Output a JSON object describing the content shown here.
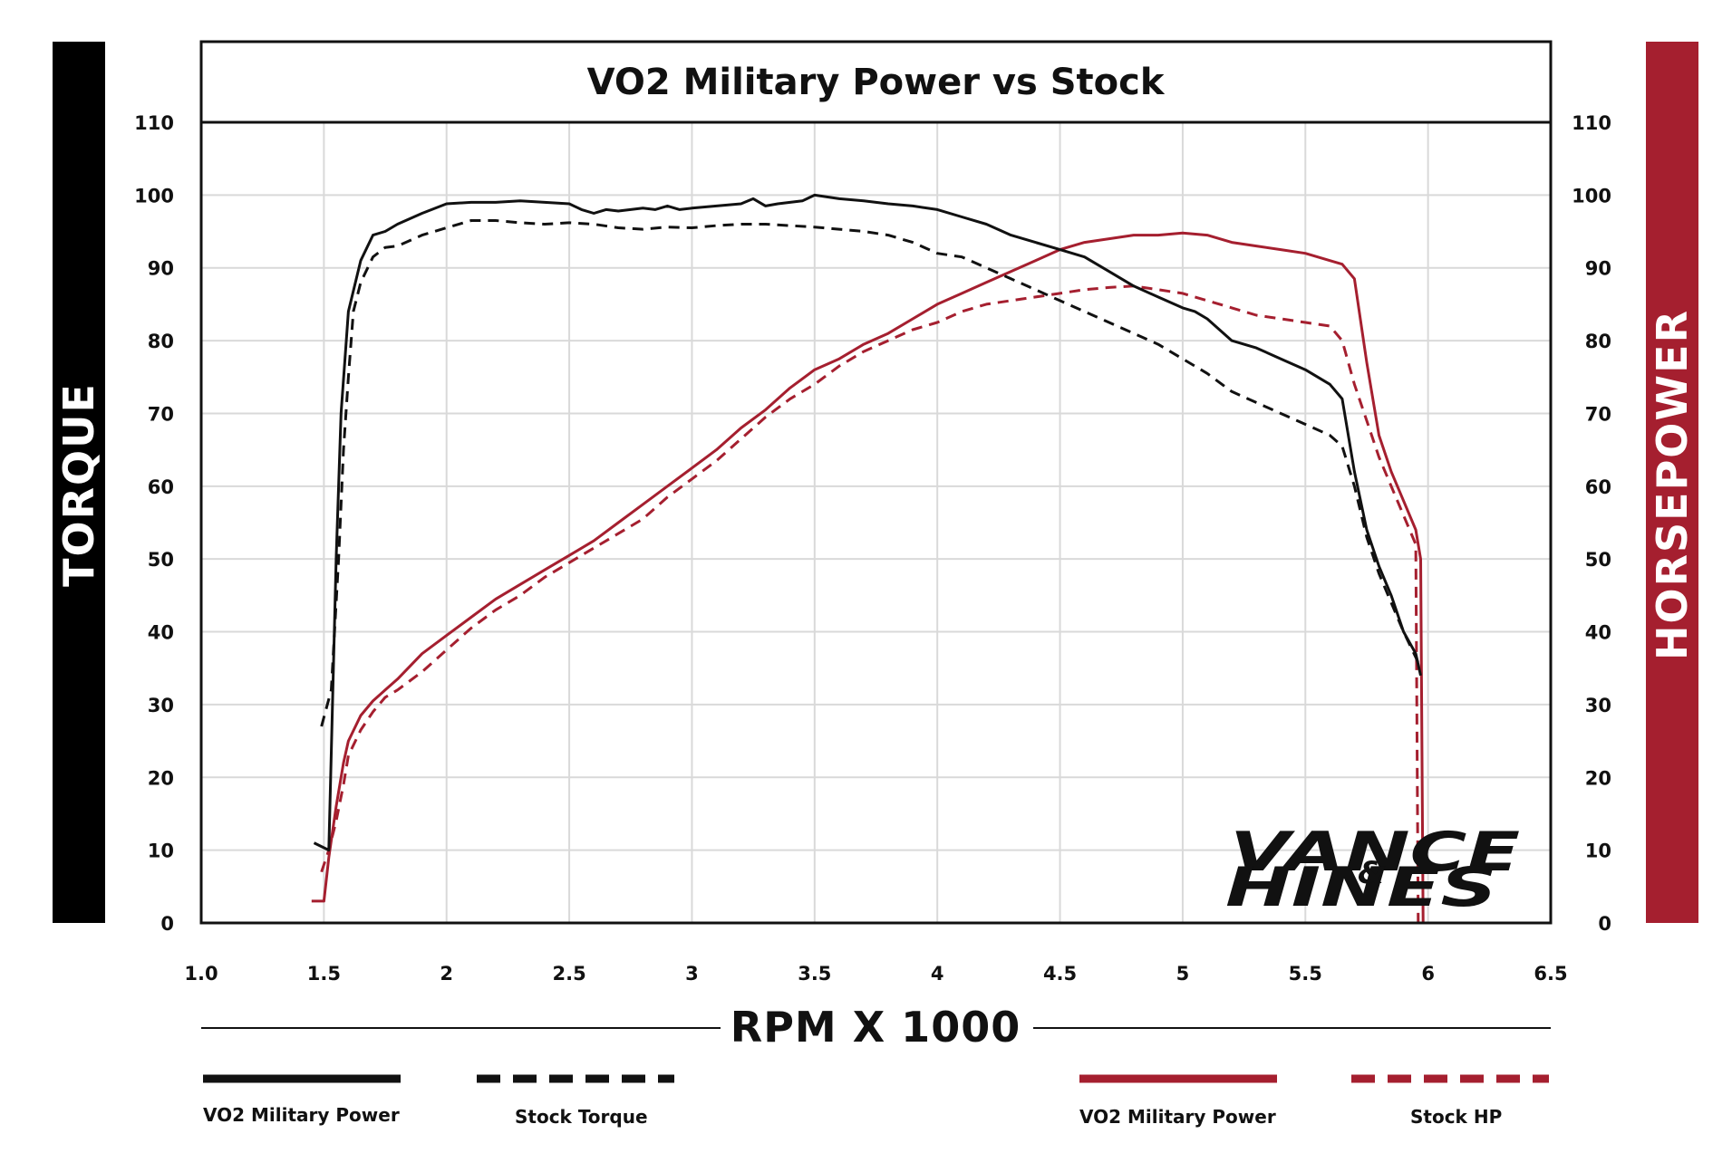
{
  "chart_data": {
    "type": "line",
    "title": "VO2 Military Power vs Stock",
    "xlabel": "RPM X 1000",
    "ylabel_left": "TORQUE",
    "ylabel_right": "HORSEPOWER",
    "xlim": [
      1.0,
      6.5
    ],
    "ylim": [
      0,
      110
    ],
    "x_ticks": [
      "1.0",
      "1.5",
      "2",
      "2.5",
      "3",
      "3.5",
      "4",
      "4.5",
      "5",
      "5.5",
      "6",
      "6.5"
    ],
    "x_tick_values": [
      1.0,
      1.5,
      2.0,
      2.5,
      3.0,
      3.5,
      4.0,
      4.5,
      5.0,
      5.5,
      6.0,
      6.5
    ],
    "y_ticks": [
      "0",
      "10",
      "20",
      "30",
      "40",
      "50",
      "60",
      "70",
      "80",
      "90",
      "100",
      "110"
    ],
    "grid": true,
    "series": [
      {
        "name": "VO2 Military Power",
        "axis": "torque",
        "color": "#111111",
        "dashed": false,
        "x": [
          1.46,
          1.52,
          1.55,
          1.57,
          1.6,
          1.65,
          1.7,
          1.75,
          1.8,
          1.9,
          2.0,
          2.1,
          2.2,
          2.3,
          2.4,
          2.5,
          2.55,
          2.6,
          2.65,
          2.7,
          2.75,
          2.8,
          2.85,
          2.9,
          2.95,
          3.0,
          3.1,
          3.2,
          3.25,
          3.3,
          3.35,
          3.4,
          3.45,
          3.5,
          3.6,
          3.7,
          3.8,
          3.9,
          4.0,
          4.1,
          4.2,
          4.3,
          4.4,
          4.5,
          4.6,
          4.7,
          4.8,
          4.9,
          5.0,
          5.05,
          5.1,
          5.2,
          5.3,
          5.4,
          5.5,
          5.6,
          5.65,
          5.7,
          5.75,
          5.8,
          5.85,
          5.9,
          5.95,
          5.97
        ],
        "values": [
          11,
          10,
          50,
          70,
          84,
          91,
          94.5,
          95,
          96,
          97.5,
          98.8,
          99,
          99,
          99.2,
          99,
          98.8,
          98,
          97.5,
          98,
          97.8,
          98,
          98.2,
          98,
          98.5,
          98,
          98.2,
          98.5,
          98.8,
          99.5,
          98.5,
          98.8,
          99,
          99.2,
          100,
          99.5,
          99.2,
          98.8,
          98.5,
          98,
          97,
          96,
          94.5,
          93.5,
          92.5,
          91.5,
          89.5,
          87.5,
          86,
          84.5,
          84,
          83,
          80,
          79,
          77.5,
          76,
          74,
          72,
          62,
          54,
          49,
          45,
          40,
          37,
          34
        ]
      },
      {
        "name": "Stock Torque",
        "axis": "torque",
        "color": "#111111",
        "dashed": true,
        "x": [
          1.49,
          1.53,
          1.56,
          1.58,
          1.6,
          1.62,
          1.65,
          1.7,
          1.75,
          1.8,
          1.9,
          2.0,
          2.1,
          2.2,
          2.3,
          2.4,
          2.5,
          2.6,
          2.7,
          2.8,
          2.9,
          3.0,
          3.1,
          3.2,
          3.3,
          3.4,
          3.5,
          3.6,
          3.7,
          3.8,
          3.9,
          4.0,
          4.1,
          4.2,
          4.3,
          4.4,
          4.5,
          4.6,
          4.7,
          4.8,
          4.9,
          5.0,
          5.1,
          5.2,
          5.3,
          5.4,
          5.5,
          5.6,
          5.65,
          5.7,
          5.75,
          5.8,
          5.85,
          5.9,
          5.95,
          5.97
        ],
        "values": [
          27,
          32,
          50,
          65,
          75,
          84,
          88,
          91.5,
          92.8,
          93,
          94.5,
          95.5,
          96.5,
          96.5,
          96.2,
          96,
          96.2,
          96,
          95.5,
          95.3,
          95.6,
          95.5,
          95.8,
          96,
          96,
          95.8,
          95.6,
          95.3,
          95,
          94.5,
          93.5,
          92,
          91.5,
          90,
          88.5,
          87,
          85.5,
          84,
          82.5,
          81,
          79.5,
          77.5,
          75.5,
          73,
          71.5,
          70,
          68.5,
          67,
          65.5,
          60,
          53,
          48,
          44,
          40,
          36.5,
          35
        ]
      },
      {
        "name": "VO2 Military Power",
        "axis": "horsepower",
        "color": "#a51f2f",
        "dashed": false,
        "x": [
          1.45,
          1.5,
          1.52,
          1.55,
          1.58,
          1.6,
          1.65,
          1.7,
          1.75,
          1.8,
          1.9,
          2.0,
          2.1,
          2.2,
          2.3,
          2.4,
          2.5,
          2.6,
          2.7,
          2.8,
          2.9,
          3.0,
          3.1,
          3.2,
          3.3,
          3.4,
          3.5,
          3.6,
          3.7,
          3.8,
          3.9,
          4.0,
          4.1,
          4.2,
          4.3,
          4.4,
          4.5,
          4.6,
          4.7,
          4.8,
          4.9,
          5.0,
          5.1,
          5.2,
          5.3,
          5.4,
          5.5,
          5.55,
          5.6,
          5.65,
          5.7,
          5.75,
          5.8,
          5.85,
          5.9,
          5.95,
          5.97,
          5.98
        ],
        "values": [
          3,
          3,
          9,
          16,
          22,
          25,
          28.5,
          30.5,
          32,
          33.5,
          37,
          39.5,
          42,
          44.5,
          46.5,
          48.5,
          50.5,
          52.5,
          55,
          57.5,
          60,
          62.5,
          65,
          68,
          70.5,
          73.5,
          76,
          77.5,
          79.5,
          81,
          83,
          85,
          86.5,
          88,
          89.5,
          91,
          92.5,
          93.5,
          94,
          94.5,
          94.5,
          94.8,
          94.5,
          93.5,
          93,
          92.5,
          92,
          91.5,
          91,
          90.5,
          88.5,
          77,
          67,
          62,
          58,
          54,
          50,
          0
        ]
      },
      {
        "name": "Stock HP",
        "axis": "horsepower",
        "color": "#a51f2f",
        "dashed": true,
        "x": [
          1.49,
          1.52,
          1.55,
          1.58,
          1.6,
          1.65,
          1.7,
          1.75,
          1.8,
          1.9,
          2.0,
          2.1,
          2.2,
          2.3,
          2.4,
          2.5,
          2.6,
          2.7,
          2.8,
          2.9,
          3.0,
          3.1,
          3.2,
          3.3,
          3.4,
          3.5,
          3.6,
          3.7,
          3.8,
          3.9,
          4.0,
          4.1,
          4.2,
          4.3,
          4.4,
          4.5,
          4.6,
          4.7,
          4.8,
          4.9,
          5.0,
          5.1,
          5.2,
          5.3,
          5.4,
          5.5,
          5.6,
          5.65,
          5.7,
          5.75,
          5.8,
          5.85,
          5.9,
          5.95,
          5.96
        ],
        "values": [
          7,
          10,
          14,
          19,
          23,
          26.5,
          29,
          31,
          32,
          34.5,
          37.5,
          40.5,
          43,
          45,
          47.5,
          49.5,
          51.5,
          53.5,
          55.5,
          58.5,
          61,
          63.5,
          66.5,
          69.5,
          72,
          74,
          76.5,
          78.5,
          80,
          81.5,
          82.5,
          84,
          85,
          85.5,
          86,
          86.5,
          87,
          87.3,
          87.5,
          87,
          86.5,
          85.5,
          84.5,
          83.5,
          83,
          82.5,
          82,
          80,
          74,
          69,
          64,
          60,
          56,
          52,
          0
        ]
      }
    ],
    "legend": [
      {
        "label": "VO2 Military Power",
        "color": "#111111",
        "dashed": false
      },
      {
        "label": "Stock Torque",
        "color": "#111111",
        "dashed": true
      },
      {
        "label": "VO2 Military Power",
        "color": "#a51f2f",
        "dashed": false
      },
      {
        "label": "Stock HP",
        "color": "#a51f2f",
        "dashed": true
      }
    ],
    "legend_position": "bottom"
  },
  "logo": {
    "line1": "VANCE",
    "connector": "&",
    "line2": "HINES"
  },
  "colors": {
    "torque_panel": "#000000",
    "hp_panel": "#a51f2f",
    "grid": "#d9d9d9",
    "frame": "#111111"
  }
}
